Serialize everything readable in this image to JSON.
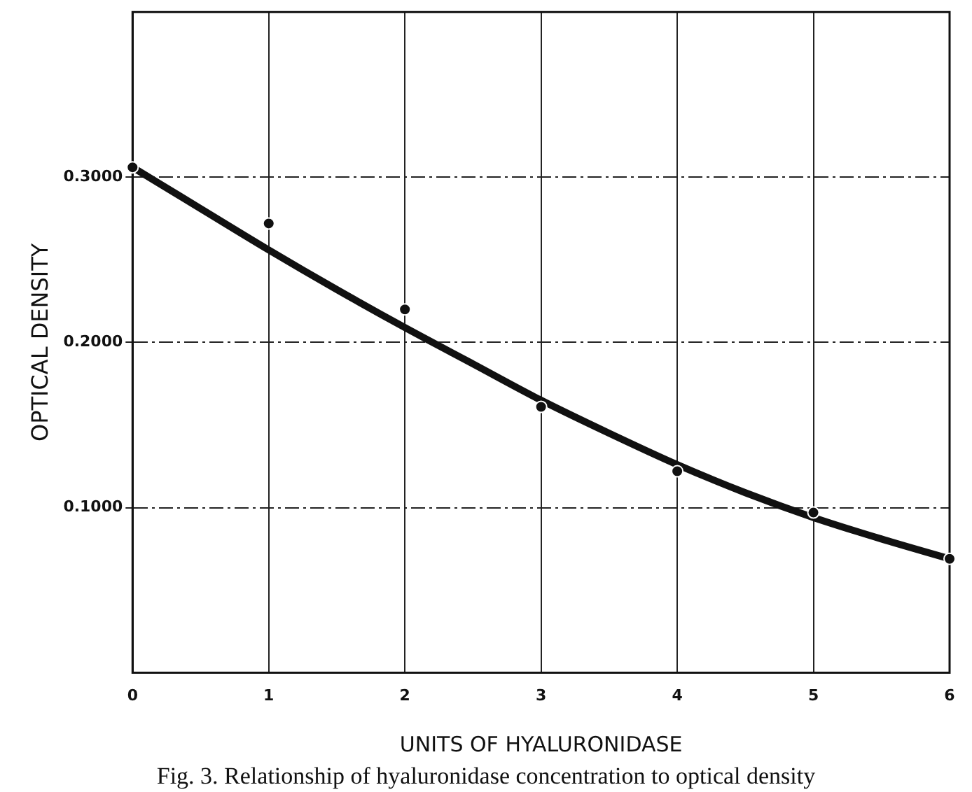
{
  "chart_data": {
    "type": "scatter",
    "xlabel": "UNITS OF HYALURONIDASE",
    "ylabel": "OPTICAL DENSITY",
    "annotations": [
      "Fig. 3. Relationship of hyaluronidase concentration to optical density"
    ],
    "xlim": [
      0,
      6
    ],
    "xticks": [
      0,
      1,
      2,
      3,
      4,
      5,
      6
    ],
    "ylim": [
      0,
      0.4
    ],
    "yticks": [
      {
        "value": 0.1,
        "label": "0.1000"
      },
      {
        "value": 0.2,
        "label": "0.2000"
      },
      {
        "value": 0.3,
        "label": "0.3000"
      }
    ],
    "grid": true,
    "legend": false,
    "series": [
      {
        "color": "#111111",
        "marker": "circle",
        "x": [
          0,
          1,
          2,
          3,
          4,
          5,
          6
        ],
        "values": [
          0.306,
          0.272,
          0.22,
          0.161,
          0.122,
          0.097,
          0.069
        ]
      },
      {
        "type": "line",
        "color": "#111111",
        "marker": "none",
        "line_style": "solid",
        "x": [
          0,
          0.5,
          1,
          1.5,
          2,
          2.5,
          3,
          3.5,
          4,
          4.5,
          5,
          5.5,
          6
        ],
        "values": [
          0.306,
          0.281,
          0.256,
          0.232,
          0.209,
          0.187,
          0.165,
          0.145,
          0.126,
          0.109,
          0.094,
          0.081,
          0.069
        ]
      }
    ]
  }
}
